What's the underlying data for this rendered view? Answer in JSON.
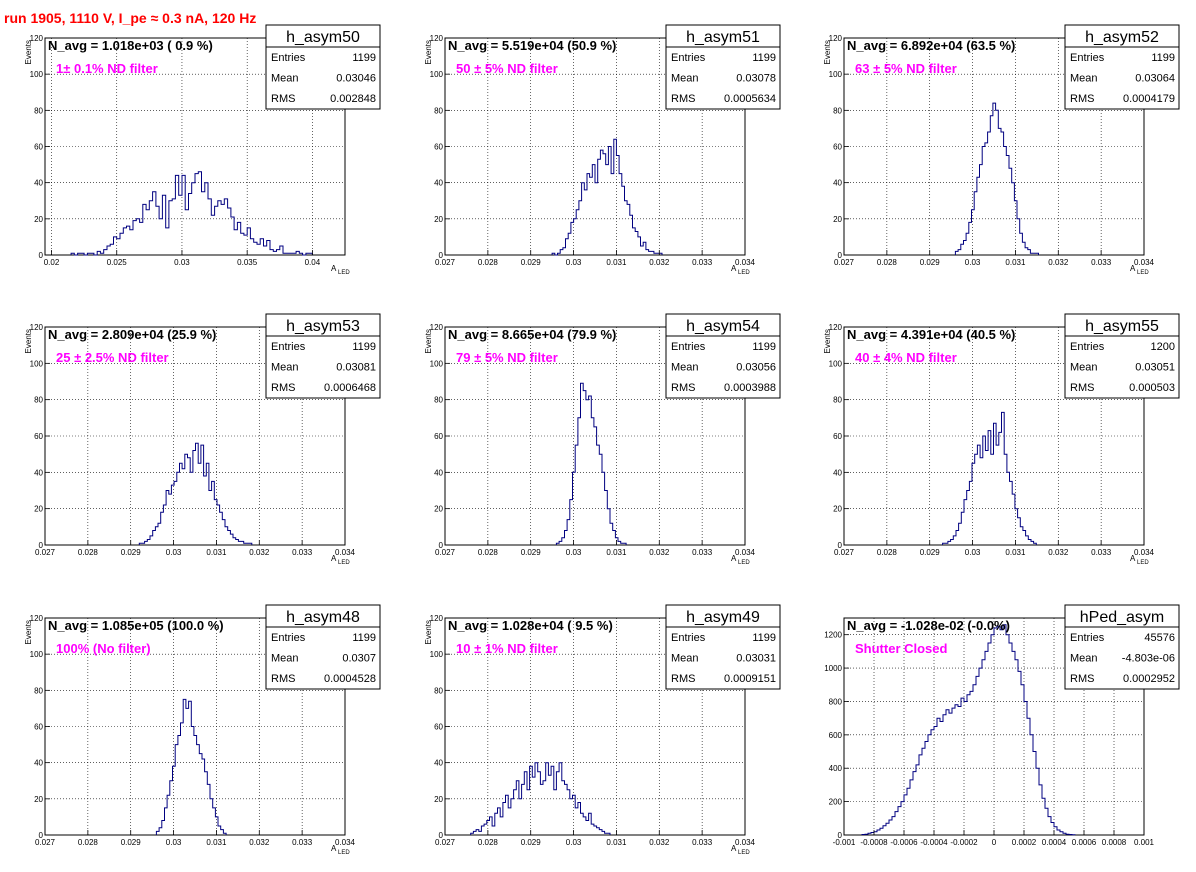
{
  "run_title": "run 1905,  1110 V, I_pe ≈ 0.3 nA, 120 Hz",
  "colors": {
    "histogram_line": "#000080",
    "annotation": "#ff00ff",
    "title": "#ff0000",
    "grid": "#000000"
  },
  "chart_data": [
    {
      "type": "bar",
      "name": "h_asym50",
      "navg_text": "N_avg = 1.018e+03 ( 0.9 %)",
      "annotation": "1± 0.1% ND filter",
      "stats": [
        [
          "Entries",
          "1199"
        ],
        [
          "Mean",
          "0.03046"
        ],
        [
          "RMS",
          "0.002848"
        ]
      ],
      "ylabel": "Events",
      "xlabel": "A",
      "xlabel_sub": "LED",
      "xlim": [
        0.0195,
        0.0425
      ],
      "ylim": [
        0,
        120
      ],
      "xticks": [
        "0.02",
        "0.025",
        "0.03",
        "0.035",
        "0.04"
      ],
      "xtick_values": [
        0.02,
        0.025,
        0.03,
        0.035,
        0.04
      ],
      "yticks": [
        "0",
        "20",
        "40",
        "60",
        "80",
        "100",
        "120"
      ],
      "bin_start": 0.0215,
      "bin_width": 0.00025,
      "values": [
        1,
        0,
        1,
        1,
        0,
        1,
        1,
        0,
        2,
        1,
        3,
        5,
        6,
        10,
        9,
        12,
        15,
        16,
        14,
        19,
        20,
        18,
        28,
        25,
        30,
        35,
        27,
        20,
        33,
        15,
        30,
        31,
        44,
        33,
        44,
        25,
        34,
        40,
        45,
        46,
        35,
        40,
        31,
        22,
        27,
        30,
        28,
        31,
        26,
        21,
        14,
        18,
        12,
        11,
        15,
        9,
        7,
        6,
        9,
        5,
        8,
        3,
        2,
        3,
        5,
        1,
        1,
        1,
        1,
        2,
        1,
        0,
        1,
        1
      ]
    },
    {
      "type": "bar",
      "name": "h_asym51",
      "navg_text": "N_avg = 5.519e+04 (50.9 %)",
      "annotation": "50 ± 5% ND filter",
      "stats": [
        [
          "Entries",
          "1199"
        ],
        [
          "Mean",
          "0.03078"
        ],
        [
          "RMS",
          "0.0005634"
        ]
      ],
      "ylabel": "Events",
      "xlabel": "A",
      "xlabel_sub": "LED",
      "xlim": [
        0.027,
        0.034
      ],
      "ylim": [
        0,
        120
      ],
      "xticks": [
        "0.027",
        "0.028",
        "0.029",
        "0.03",
        "0.031",
        "0.032",
        "0.033",
        "0.034"
      ],
      "xtick_values": [
        0.027,
        0.028,
        0.029,
        0.03,
        0.031,
        0.032,
        0.033,
        0.034
      ],
      "yticks": [
        "0",
        "20",
        "40",
        "60",
        "80",
        "100",
        "120"
      ],
      "bin_start": 0.0295,
      "bin_width": 6.25e-05,
      "values": [
        1,
        0,
        1,
        3,
        4,
        9,
        12,
        18,
        20,
        25,
        30,
        40,
        36,
        45,
        43,
        50,
        40,
        53,
        58,
        56,
        50,
        60,
        45,
        64,
        55,
        45,
        38,
        30,
        28,
        22,
        15,
        13,
        10,
        5,
        7,
        3,
        2,
        2,
        1,
        1,
        1
      ]
    },
    {
      "type": "bar",
      "name": "h_asym52",
      "navg_text": "N_avg = 6.892e+04 (63.5 %)",
      "annotation": "63 ± 5% ND filter",
      "stats": [
        [
          "Entries",
          "1199"
        ],
        [
          "Mean",
          "0.03064"
        ],
        [
          "RMS",
          "0.0004179"
        ]
      ],
      "ylabel": "Events",
      "xlabel": "A",
      "xlabel_sub": "LED",
      "xlim": [
        0.027,
        0.034
      ],
      "ylim": [
        0,
        120
      ],
      "xticks": [
        "0.027",
        "0.028",
        "0.029",
        "0.03",
        "0.031",
        "0.032",
        "0.033",
        "0.034"
      ],
      "xtick_values": [
        0.027,
        0.028,
        0.029,
        0.03,
        0.031,
        0.032,
        0.033,
        0.034
      ],
      "yticks": [
        "0",
        "20",
        "40",
        "60",
        "80",
        "100",
        "120"
      ],
      "bin_start": 0.0296,
      "bin_width": 6.25e-05,
      "values": [
        2,
        3,
        6,
        8,
        12,
        18,
        25,
        35,
        43,
        50,
        60,
        62,
        68,
        77,
        84,
        80,
        70,
        68,
        60,
        55,
        48,
        40,
        30,
        20,
        12,
        7,
        4,
        3,
        1,
        1,
        1
      ]
    },
    {
      "type": "bar",
      "name": "h_asym53",
      "navg_text": "N_avg = 2.809e+04 (25.9 %)",
      "annotation": "25 ± 2.5% ND filter",
      "stats": [
        [
          "Entries",
          "1199"
        ],
        [
          "Mean",
          "0.03081"
        ],
        [
          "RMS",
          "0.0006468"
        ]
      ],
      "ylabel": "Events",
      "xlabel": "A",
      "xlabel_sub": "LED",
      "xlim": [
        0.027,
        0.034
      ],
      "ylim": [
        0,
        120
      ],
      "xticks": [
        "0.027",
        "0.028",
        "0.029",
        "0.03",
        "0.031",
        "0.032",
        "0.033",
        "0.034"
      ],
      "xtick_values": [
        0.027,
        0.028,
        0.029,
        0.03,
        0.031,
        0.032,
        0.033,
        0.034
      ],
      "yticks": [
        "0",
        "20",
        "40",
        "60",
        "80",
        "100",
        "120"
      ],
      "bin_start": 0.0292,
      "bin_width": 6.25e-05,
      "values": [
        1,
        1,
        2,
        3,
        5,
        8,
        10,
        12,
        18,
        22,
        30,
        28,
        33,
        35,
        40,
        45,
        42,
        50,
        48,
        40,
        52,
        56,
        45,
        55,
        38,
        45,
        30,
        35,
        25,
        22,
        18,
        14,
        10,
        8,
        6,
        4,
        3,
        2,
        2,
        1,
        1,
        1
      ]
    },
    {
      "type": "bar",
      "name": "h_asym54",
      "navg_text": "N_avg = 8.665e+04 (79.9 %)",
      "annotation": "79 ± 5% ND filter",
      "stats": [
        [
          "Entries",
          "1199"
        ],
        [
          "Mean",
          "0.03056"
        ],
        [
          "RMS",
          "0.0003988"
        ]
      ],
      "ylabel": "Events",
      "xlabel": "A",
      "xlabel_sub": "LED",
      "xlim": [
        0.027,
        0.034
      ],
      "ylim": [
        0,
        120
      ],
      "xticks": [
        "0.027",
        "0.028",
        "0.029",
        "0.03",
        "0.031",
        "0.032",
        "0.033",
        "0.034"
      ],
      "xtick_values": [
        0.027,
        0.028,
        0.029,
        0.03,
        0.031,
        0.032,
        0.033,
        0.034
      ],
      "yticks": [
        "0",
        "20",
        "40",
        "60",
        "80",
        "100",
        "120"
      ],
      "bin_start": 0.0296,
      "bin_width": 6.25e-05,
      "values": [
        1,
        2,
        4,
        8,
        14,
        25,
        40,
        55,
        70,
        89,
        85,
        80,
        82,
        70,
        65,
        55,
        50,
        40,
        30,
        20,
        12,
        8,
        4,
        2,
        1,
        1
      ]
    },
    {
      "type": "bar",
      "name": "h_asym55",
      "navg_text": "N_avg = 4.391e+04 (40.5 %)",
      "annotation": "40 ± 4% ND filter",
      "stats": [
        [
          "Entries",
          "1200"
        ],
        [
          "Mean",
          "0.03051"
        ],
        [
          "RMS",
          "0.000503"
        ]
      ],
      "ylabel": "Events",
      "xlabel": "A",
      "xlabel_sub": "LED",
      "xlim": [
        0.027,
        0.034
      ],
      "ylim": [
        0,
        120
      ],
      "xticks": [
        "0.027",
        "0.028",
        "0.029",
        "0.03",
        "0.031",
        "0.032",
        "0.033",
        "0.034"
      ],
      "xtick_values": [
        0.027,
        0.028,
        0.029,
        0.03,
        0.031,
        0.032,
        0.033,
        0.034
      ],
      "yticks": [
        "0",
        "20",
        "40",
        "60",
        "80",
        "100",
        "120"
      ],
      "bin_start": 0.0293,
      "bin_width": 6.25e-05,
      "values": [
        1,
        1,
        2,
        3,
        5,
        8,
        12,
        18,
        25,
        30,
        35,
        45,
        50,
        55,
        48,
        60,
        52,
        63,
        50,
        67,
        55,
        62,
        73,
        50,
        40,
        35,
        28,
        20,
        15,
        10,
        8,
        5,
        3,
        2,
        1
      ]
    },
    {
      "type": "bar",
      "name": "h_asym48",
      "navg_text": "N_avg = 1.085e+05 (100.0 %)",
      "annotation": "100% (No filter)",
      "stats": [
        [
          "Entries",
          "1199"
        ],
        [
          "Mean",
          "0.0307"
        ],
        [
          "RMS",
          "0.0004528"
        ]
      ],
      "ylabel": "Events",
      "xlabel": "A",
      "xlabel_sub": "LED",
      "xlim": [
        0.027,
        0.034
      ],
      "ylim": [
        0,
        120
      ],
      "xticks": [
        "0.027",
        "0.028",
        "0.029",
        "0.03",
        "0.031",
        "0.032",
        "0.033",
        "0.034"
      ],
      "xtick_values": [
        0.027,
        0.028,
        0.029,
        0.03,
        0.031,
        0.032,
        0.033,
        0.034
      ],
      "yticks": [
        "0",
        "20",
        "40",
        "60",
        "80",
        "100",
        "120"
      ],
      "bin_start": 0.0296,
      "bin_width": 6.25e-05,
      "values": [
        2,
        4,
        8,
        15,
        22,
        30,
        38,
        50,
        55,
        62,
        75,
        70,
        74,
        60,
        55,
        50,
        45,
        42,
        35,
        28,
        20,
        15,
        10,
        5,
        3,
        1
      ]
    },
    {
      "type": "bar",
      "name": "h_asym49",
      "navg_text": "N_avg = 1.028e+04 ( 9.5 %)",
      "annotation": "10 ± 1% ND filter",
      "stats": [
        [
          "Entries",
          "1199"
        ],
        [
          "Mean",
          "0.03031"
        ],
        [
          "RMS",
          "0.0009151"
        ]
      ],
      "ylabel": "Events",
      "xlabel": "A",
      "xlabel_sub": "LED",
      "xlim": [
        0.027,
        0.034
      ],
      "ylim": [
        0,
        120
      ],
      "xticks": [
        "0.027",
        "0.028",
        "0.029",
        "0.03",
        "0.031",
        "0.032",
        "0.033",
        "0.034"
      ],
      "xtick_values": [
        0.027,
        0.028,
        0.029,
        0.03,
        0.031,
        0.032,
        0.033,
        0.034
      ],
      "yticks": [
        "0",
        "20",
        "40",
        "60",
        "80",
        "100",
        "120"
      ],
      "bin_start": 0.0276,
      "bin_width": 6.25e-05,
      "values": [
        1,
        2,
        3,
        2,
        5,
        6,
        8,
        10,
        5,
        12,
        15,
        10,
        18,
        22,
        15,
        20,
        25,
        30,
        20,
        28,
        35,
        25,
        38,
        32,
        40,
        35,
        28,
        30,
        40,
        33,
        38,
        25,
        35,
        40,
        30,
        28,
        25,
        20,
        22,
        15,
        18,
        12,
        10,
        8,
        12,
        6,
        5,
        4,
        3,
        2,
        1,
        1
      ]
    },
    {
      "type": "bar",
      "name": "hPed_asym",
      "navg_text": "N_avg = -1.028e-02 (-0.0%)",
      "annotation": "Shutter Closed",
      "stats": [
        [
          "Entries",
          "45576"
        ],
        [
          "Mean",
          "-4.803e-06"
        ],
        [
          "RMS",
          "0.0002952"
        ]
      ],
      "ylabel": "",
      "xlabel": "",
      "xlabel_sub": "",
      "xlim": [
        -0.001,
        0.001
      ],
      "ylim": [
        0,
        1300
      ],
      "xticks": [
        "-0.001",
        "-0.0008",
        "-0.0006",
        "-0.0004",
        "-0.0002",
        "0",
        "0.0002",
        "0.0004",
        "0.0006",
        "0.0008",
        "0.001"
      ],
      "xtick_values": [
        -0.001,
        -0.0008,
        -0.0006,
        -0.0004,
        -0.0002,
        0,
        0.0002,
        0.0004,
        0.0006,
        0.0008,
        0.001
      ],
      "yticks": [
        "0",
        "200",
        "400",
        "600",
        "800",
        "1000",
        "1200"
      ],
      "bin_start": -0.00088,
      "bin_width": 2e-05,
      "values": [
        3,
        5,
        10,
        15,
        20,
        30,
        40,
        55,
        70,
        90,
        110,
        140,
        170,
        200,
        240,
        280,
        330,
        380,
        420,
        480,
        520,
        560,
        600,
        630,
        650,
        700,
        680,
        720,
        750,
        730,
        760,
        780,
        770,
        820,
        800,
        840,
        860,
        900,
        950,
        1000,
        1050,
        1100,
        1150,
        1200,
        1240,
        1250,
        1230,
        1260,
        1200,
        1150,
        1100,
        1050,
        980,
        900,
        800,
        700,
        600,
        500,
        400,
        300,
        220,
        160,
        110,
        75,
        50,
        30,
        20,
        10,
        5,
        3,
        1
      ]
    }
  ]
}
